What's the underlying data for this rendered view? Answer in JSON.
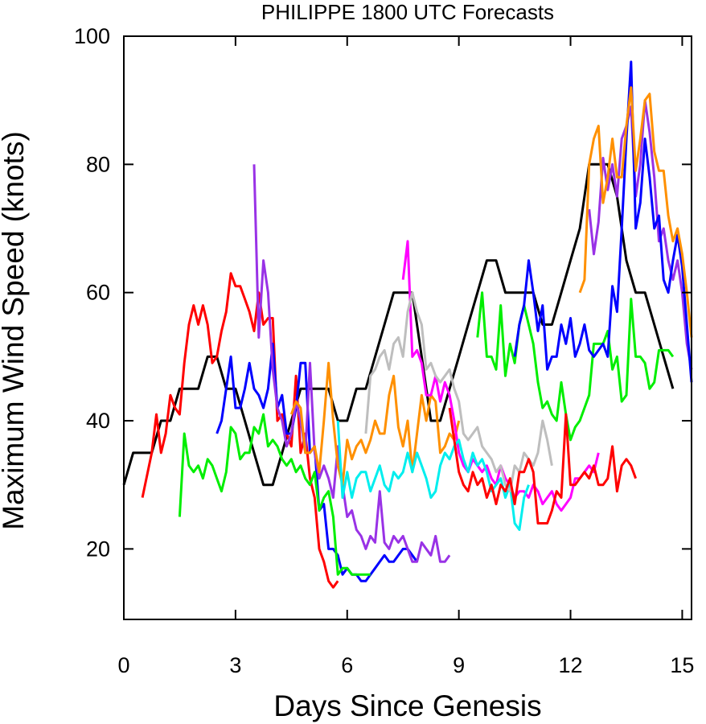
{
  "chart_data": {
    "type": "line",
    "title": "PHILIPPE 1800 UTC Forecasts",
    "xlabel": "Days Since Genesis",
    "ylabel": "Maximum Wind Speed (knots)",
    "xlim": [
      0,
      15.25
    ],
    "ylim": [
      9,
      100
    ],
    "xticks": [
      0,
      3,
      6,
      9,
      12,
      15
    ],
    "yticks": [
      20,
      40,
      60,
      80,
      100
    ],
    "xtick_labels": [
      "0",
      "3",
      "6",
      "9",
      "12",
      "15"
    ],
    "ytick_labels": [
      "20",
      "40",
      "60",
      "80",
      "100"
    ],
    "grid": false,
    "legend": "none",
    "series": [
      {
        "color": "#000000",
        "x": [
          0,
          0.25,
          0.75,
          1.0,
          1.25,
          1.5,
          2.0,
          2.25,
          2.5,
          2.75,
          3.0,
          3.25,
          3.5,
          3.75,
          4.0,
          4.25,
          4.5,
          4.75,
          5.0,
          5.25,
          5.5,
          5.75,
          6.0,
          6.25,
          6.5,
          6.75,
          7.0,
          7.25,
          7.5,
          7.75,
          8.0,
          8.25,
          8.5,
          8.75,
          9.0,
          9.25,
          9.5,
          9.75,
          10.0,
          10.25,
          10.5,
          10.75,
          11.0,
          11.25,
          11.5,
          11.75,
          12.0,
          12.25,
          12.5,
          12.75,
          13.0,
          13.25,
          13.5,
          13.75,
          14.0,
          14.25,
          14.5,
          14.75
        ],
        "y": [
          30,
          35,
          35,
          40,
          40,
          45,
          45,
          50,
          50,
          45,
          45,
          40,
          35,
          30,
          30,
          35,
          40,
          45,
          45,
          45,
          45,
          40,
          40,
          45,
          45,
          50,
          55,
          60,
          60,
          60,
          50,
          40,
          40,
          45,
          50,
          55,
          60,
          65,
          65,
          60,
          60,
          60,
          60,
          55,
          55,
          60,
          65,
          70,
          80,
          80,
          80,
          75,
          65,
          60,
          60,
          55,
          50,
          45
        ]
      },
      {
        "color": "#ff0000",
        "x": [
          0.5,
          0.75,
          0.875,
          1.0,
          1.125,
          1.25,
          1.375,
          1.5,
          1.625,
          1.75,
          1.875,
          2.0,
          2.125,
          2.25,
          2.375,
          2.5,
          2.625,
          2.75,
          2.875,
          3.0,
          3.125,
          3.25,
          3.375,
          3.5,
          3.625,
          3.75,
          3.875,
          4.0,
          4.125,
          4.25,
          4.375,
          4.5,
          4.625,
          4.75,
          4.875,
          5.0,
          5.125,
          5.25,
          5.375,
          5.5,
          5.625,
          5.75
        ],
        "y": [
          28,
          35,
          41,
          35,
          38,
          44,
          42,
          41,
          49,
          55,
          58,
          55,
          58,
          55,
          49,
          50,
          54,
          57,
          63,
          61,
          61,
          59,
          57,
          54,
          60,
          55,
          56,
          56,
          40,
          41,
          38,
          36,
          47,
          35,
          38,
          31,
          28,
          20,
          18,
          15,
          14,
          15
        ]
      },
      {
        "color": "#0000ff",
        "x": [
          2.5,
          2.625,
          2.75,
          2.875,
          3.0,
          3.125,
          3.25,
          3.375,
          3.5,
          3.625,
          3.75,
          3.875,
          4.0,
          4.125,
          4.25,
          4.375,
          4.5,
          4.625,
          4.75,
          4.875,
          5.0,
          5.125,
          5.25,
          5.375,
          5.5,
          5.625,
          5.75,
          5.875,
          6.0,
          6.125,
          6.25,
          6.375,
          6.5,
          6.625,
          6.75,
          6.875,
          7.0,
          7.125,
          7.25,
          7.375,
          7.5,
          7.625,
          7.75,
          7.875
        ],
        "y": [
          38,
          40,
          45,
          50,
          42,
          42,
          45,
          49,
          45,
          44,
          42,
          45,
          52,
          42,
          44,
          38,
          38,
          42,
          49,
          49,
          35,
          36,
          26,
          27,
          20,
          20,
          19,
          16,
          17,
          16,
          16,
          15,
          15,
          16,
          17,
          18,
          19,
          18,
          18,
          19,
          20,
          20,
          19,
          18
        ]
      },
      {
        "color": "#00ee00",
        "x": [
          1.5,
          1.625,
          1.75,
          1.875,
          2.0,
          2.125,
          2.25,
          2.375,
          2.5,
          2.625,
          2.75,
          2.875,
          3.0,
          3.125,
          3.25,
          3.375,
          3.5,
          3.625,
          3.75,
          3.875,
          4.0,
          4.125,
          4.25,
          4.375,
          4.5,
          4.625,
          4.75,
          4.875,
          5.0,
          5.125,
          5.25,
          5.375,
          5.5,
          5.625,
          5.75,
          5.875,
          6.0,
          6.125,
          6.25,
          6.375,
          6.5,
          6.625
        ],
        "y": [
          25,
          38,
          33,
          32,
          33,
          31,
          34,
          33,
          31,
          29,
          32,
          39,
          38,
          34,
          35,
          35,
          39,
          38,
          41,
          36,
          37,
          36,
          34,
          33,
          34,
          32,
          33,
          31,
          30,
          32,
          26,
          28,
          29,
          25,
          16,
          17,
          17,
          16,
          16,
          16,
          16,
          16
        ]
      },
      {
        "color": "#00ee00",
        "x": [
          9.5,
          9.625,
          9.75,
          9.875,
          10.0,
          10.125,
          10.25,
          10.375,
          10.5,
          10.625,
          10.75,
          10.875,
          11.0,
          11.125,
          11.25,
          11.375,
          11.5,
          11.625,
          11.75,
          11.875,
          12.0,
          12.125,
          12.25,
          12.375,
          12.5,
          12.625,
          12.75,
          12.875,
          13.0,
          13.125,
          13.25,
          13.375,
          13.5,
          13.625,
          13.75,
          13.875,
          14.0,
          14.125,
          14.25,
          14.375,
          14.5,
          14.625,
          14.75
        ],
        "y": [
          53,
          60,
          50,
          50,
          48,
          58,
          47,
          52,
          49,
          55,
          58,
          55,
          52,
          46,
          42,
          43,
          41,
          40,
          46,
          41,
          37,
          39,
          40,
          42,
          44,
          52,
          52,
          52,
          54,
          48,
          50,
          43,
          44,
          59,
          50,
          50,
          49,
          45,
          46,
          51,
          51,
          51,
          50
        ]
      },
      {
        "color": "#9932e6",
        "x": [
          3.5,
          3.625,
          3.75,
          3.875,
          4.0,
          4.125,
          4.25,
          4.375,
          4.5,
          4.625,
          4.75,
          4.875,
          5.0,
          5.125,
          5.25,
          5.375,
          5.5,
          5.625,
          5.75,
          5.875,
          6.0,
          6.125,
          6.25,
          6.375,
          6.5,
          6.625,
          6.75,
          6.875,
          7.0,
          7.125,
          7.25,
          7.375,
          7.5,
          7.625,
          7.75,
          7.875,
          8.0,
          8.125,
          8.25,
          8.375,
          8.5,
          8.625,
          8.75
        ],
        "y": [
          80,
          53,
          65,
          60,
          48,
          42,
          40,
          36,
          38,
          43,
          40,
          35,
          49,
          35,
          31,
          33,
          31,
          28,
          36,
          30,
          25,
          26,
          23,
          22,
          20,
          22,
          21,
          29,
          21,
          20,
          22,
          21,
          22,
          20,
          18,
          18,
          21,
          20,
          19,
          22,
          18,
          18,
          19
        ]
      },
      {
        "color": "#9932e6",
        "x": [
          12.5,
          12.625,
          12.75,
          12.875,
          13.0,
          13.125,
          13.25,
          13.375,
          13.5,
          13.625,
          13.75,
          13.875,
          14.0,
          14.125,
          14.25,
          14.375,
          14.5,
          14.625,
          14.75,
          14.875,
          15.0,
          15.125,
          15.25
        ],
        "y": [
          73,
          66,
          71,
          81,
          76,
          80,
          75,
          84,
          86,
          89,
          75,
          80,
          90,
          85,
          78,
          68,
          70,
          65,
          62,
          65,
          60,
          52,
          48
        ]
      },
      {
        "color": "#0000ff",
        "x": [
          10.5,
          10.625,
          10.75,
          10.875,
          11.0,
          11.125,
          11.25,
          11.375,
          11.5,
          11.625,
          11.75,
          11.875,
          12.0,
          12.125,
          12.25,
          12.375,
          12.5,
          12.625,
          12.75,
          12.875,
          13.0,
          13.125,
          13.25,
          13.375,
          13.5,
          13.625,
          13.75,
          13.875,
          14.0,
          14.125,
          14.25,
          14.375,
          14.5,
          14.625,
          14.75,
          14.875,
          15.0,
          15.125,
          15.25
        ],
        "y": [
          50,
          55,
          58,
          65,
          60,
          54,
          58,
          48,
          50,
          50,
          55,
          52,
          56,
          50,
          52,
          55,
          51,
          50,
          51,
          52,
          50,
          61,
          57,
          70,
          84,
          96,
          70,
          74,
          84,
          78,
          70,
          72,
          62,
          60,
          65,
          69,
          64,
          55,
          46
        ]
      },
      {
        "color": "#ff9000",
        "x": [
          4.5,
          4.625,
          4.75,
          4.875,
          5.0,
          5.125,
          5.25,
          5.375,
          5.5,
          5.625,
          5.75,
          5.875,
          6.0,
          6.125,
          6.25,
          6.375,
          6.5,
          6.625,
          6.75,
          6.875,
          7.0,
          7.125,
          7.25,
          7.375,
          7.5,
          7.625,
          7.75,
          7.875,
          8.0,
          8.125,
          8.25,
          8.375,
          8.5,
          8.625,
          8.75,
          8.875,
          9.0
        ],
        "y": [
          41,
          43,
          42,
          35,
          35,
          36,
          32,
          40,
          49,
          40,
          33,
          30,
          37,
          34,
          36,
          37,
          35,
          37,
          40,
          38,
          38,
          44,
          47,
          39,
          36,
          40,
          32,
          38,
          44,
          40,
          44,
          43,
          35,
          36,
          38,
          37,
          40
        ]
      },
      {
        "color": "#ff9000",
        "x": [
          12.25,
          12.375,
          12.5,
          12.625,
          12.75,
          12.875,
          13.0,
          13.125,
          13.25,
          13.375,
          13.5,
          13.625,
          13.75,
          13.875,
          14.0,
          14.125,
          14.25,
          14.375,
          14.5,
          14.625,
          14.75,
          14.875,
          15.0,
          15.125,
          15.25
        ],
        "y": [
          60,
          62,
          80,
          84,
          86,
          74,
          78,
          84,
          78,
          78,
          86,
          92,
          79,
          84,
          90,
          91,
          82,
          79,
          79,
          72,
          68,
          70,
          66,
          60,
          53
        ]
      },
      {
        "color": "#ff00ff",
        "x": [
          7.5,
          7.625,
          7.75,
          7.875,
          8.0,
          8.125,
          8.25,
          8.375,
          8.5,
          8.625,
          8.75,
          8.875,
          9.0,
          9.125,
          9.25,
          9.375,
          9.5,
          9.625,
          9.75,
          9.875,
          10.0,
          10.125,
          10.25,
          10.375,
          10.5,
          10.625,
          10.75,
          10.875,
          11.0,
          11.125,
          11.25,
          11.375,
          11.5,
          11.625,
          11.75,
          11.875,
          12.0,
          12.125,
          12.25,
          12.375,
          12.5,
          12.625,
          12.75
        ],
        "y": [
          62,
          68,
          50,
          51,
          49,
          44,
          44,
          47,
          43,
          46,
          44,
          40,
          35,
          33,
          32,
          34,
          33,
          32,
          33,
          31,
          30,
          33,
          31,
          30,
          28,
          29,
          29,
          28,
          30,
          29,
          27,
          28,
          29,
          27,
          26,
          27,
          28,
          31,
          31,
          32,
          33,
          32,
          35
        ]
      },
      {
        "color": "#00eeee",
        "x": [
          5.75,
          5.875,
          6.0,
          6.125,
          6.25,
          6.375,
          6.5,
          6.625,
          6.75,
          6.875,
          7.0,
          7.125,
          7.25,
          7.375,
          7.5,
          7.625,
          7.75,
          7.875,
          8.0,
          8.125,
          8.25,
          8.375,
          8.5,
          8.625,
          8.75,
          8.875,
          9.0,
          9.125,
          9.25,
          9.375,
          9.5,
          9.625,
          9.75,
          9.875,
          10.0,
          10.125,
          10.25,
          10.375,
          10.5,
          10.625,
          10.75,
          10.875
        ],
        "y": [
          40,
          28,
          32,
          28,
          31,
          32,
          32,
          29,
          31,
          33,
          30,
          29,
          32,
          31,
          32,
          35,
          32,
          35,
          33,
          31,
          28,
          29,
          33,
          35,
          34,
          36,
          37,
          34,
          32,
          35,
          33,
          34,
          32,
          29,
          30,
          31,
          28,
          30,
          24,
          23,
          28,
          30
        ]
      },
      {
        "color": "#bebebe",
        "x": [
          6.5,
          6.625,
          6.75,
          6.875,
          7.0,
          7.125,
          7.25,
          7.375,
          7.5,
          7.625,
          7.75,
          7.875,
          8.0,
          8.125,
          8.25,
          8.375,
          8.5,
          8.625,
          8.75,
          8.875,
          9.0,
          9.125,
          9.25,
          9.375,
          9.5,
          9.625,
          9.75,
          9.875,
          10.0,
          10.125,
          10.25,
          10.375,
          10.5,
          10.625,
          10.75,
          10.875,
          11.0,
          11.125,
          11.25,
          11.375,
          11.5
        ],
        "y": [
          38,
          47,
          48,
          50,
          51,
          48,
          52,
          53,
          50,
          57,
          60,
          57,
          55,
          48,
          49,
          47,
          46,
          47,
          48,
          45,
          43,
          38,
          37,
          38,
          39,
          36,
          35,
          34,
          32,
          33,
          30,
          29,
          33,
          32,
          35,
          34,
          33,
          35,
          40,
          37,
          33
        ]
      },
      {
        "color": "#ff0000",
        "x": [
          8.75,
          8.875,
          9.0,
          9.125,
          9.25,
          9.375,
          9.5,
          9.625,
          9.75,
          9.875,
          10.0,
          10.125,
          10.25,
          10.375,
          10.5,
          10.625,
          10.75,
          10.875,
          11.0,
          11.125,
          11.25,
          11.375,
          11.5,
          11.625,
          11.75,
          11.875,
          12.0,
          12.125,
          12.25,
          12.375,
          12.5,
          12.625,
          12.75,
          12.875,
          13.0,
          13.125,
          13.25,
          13.375,
          13.5,
          13.625,
          13.75
        ],
        "y": [
          42,
          37,
          32,
          30,
          29,
          32,
          30,
          31,
          28,
          30,
          27,
          30,
          29,
          31,
          27,
          32,
          32,
          34,
          32,
          24,
          24,
          24,
          26,
          29,
          28,
          41,
          30,
          30,
          31,
          32,
          31,
          33,
          30,
          30,
          31,
          36,
          29,
          33,
          34,
          33,
          31
        ]
      }
    ]
  }
}
